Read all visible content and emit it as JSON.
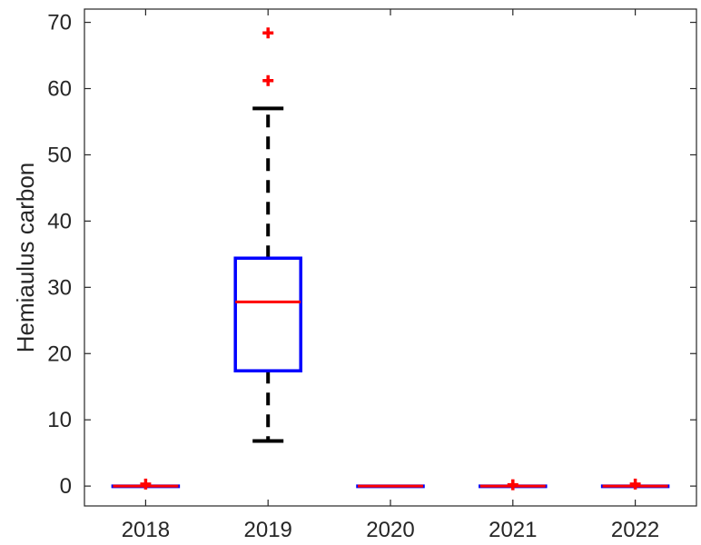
{
  "chart_data": {
    "type": "box",
    "title": "",
    "xlabel": "",
    "ylabel": "Hemiaulus carbon",
    "ylim": [
      -3,
      72
    ],
    "yticks": [
      0,
      10,
      20,
      30,
      40,
      50,
      60,
      70
    ],
    "categories": [
      "2018",
      "2019",
      "2020",
      "2021",
      "2022"
    ],
    "boxes": [
      {
        "category": "2018",
        "q1": 0,
        "median": 0,
        "q3": 0,
        "whisker_low": 0,
        "whisker_high": 0,
        "outliers": [
          0.3
        ]
      },
      {
        "category": "2019",
        "q1": 17.4,
        "median": 27.8,
        "q3": 34.4,
        "whisker_low": 6.8,
        "whisker_high": 57.0,
        "outliers": [
          61.2,
          68.4
        ]
      },
      {
        "category": "2020",
        "q1": 0,
        "median": 0,
        "q3": 0,
        "whisker_low": 0,
        "whisker_high": 0,
        "outliers": []
      },
      {
        "category": "2021",
        "q1": 0,
        "median": 0,
        "q3": 0,
        "whisker_low": 0,
        "whisker_high": 0,
        "outliers": [
          0.2
        ]
      },
      {
        "category": "2022",
        "q1": 0,
        "median": 0,
        "q3": 0,
        "whisker_low": 0,
        "whisker_high": 0,
        "outliers": [
          0.3
        ]
      }
    ],
    "colors": {
      "box": "#0000ff",
      "median": "#ff0000",
      "whisker": "#000000",
      "outlier": "#ff0000"
    },
    "grid": false,
    "legend": "none"
  }
}
